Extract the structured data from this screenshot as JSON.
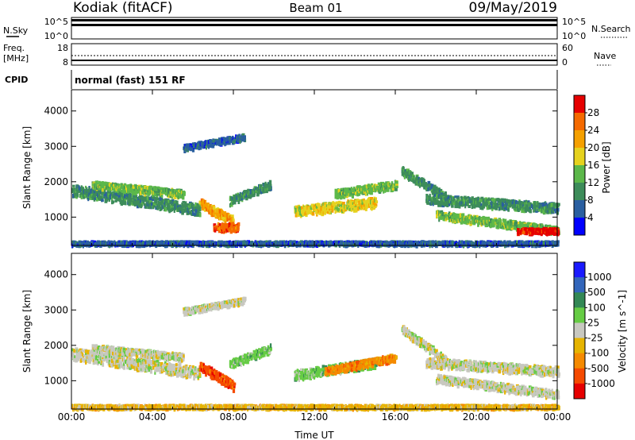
{
  "header": {
    "station": "Kodiak (fitACF)",
    "beam": "Beam 01",
    "date": "09/May/2019"
  },
  "status_panel": {
    "nsky_label": "N.Sky",
    "nsky_ticks": [
      "10^5",
      "10^0"
    ],
    "nsearch_label": "N.Search",
    "nsearch_ticks": [
      "10^5",
      "10^0"
    ],
    "freq_label_line1": "Freq.",
    "freq_label_line2": "[MHz]",
    "freq_ticks": [
      "18",
      "8"
    ],
    "nave_label": "Nave",
    "nave_ticks": [
      "60",
      "0"
    ],
    "cpid_label": "CPID",
    "cpid_value": "normal (fast) 151 RF"
  },
  "colors": {
    "power_scale": [
      "#0000ff",
      "#2a5fa0",
      "#3d8c5a",
      "#5cb84a",
      "#e6d21e",
      "#f5a000",
      "#f56a00",
      "#e60000"
    ],
    "velocity_scale": [
      "#1a1aff",
      "#3366bb",
      "#338855",
      "#66cc44",
      "#c8c8c0",
      "#e6b400",
      "#f58a00",
      "#f54a00",
      "#e60000"
    ]
  },
  "chart_data": [
    {
      "type": "heatmap",
      "name": "power",
      "xlabel": "",
      "ylabel": "Slant Range [km]",
      "x_ticks": [
        "00:00",
        "04:00",
        "08:00",
        "12:00",
        "16:00",
        "20:00",
        "00:00"
      ],
      "y_ticks": [
        "1000",
        "2000",
        "3000",
        "4000"
      ],
      "ylim": [
        200,
        4600
      ],
      "colorbar_label": "Power [dB]",
      "colorbar_ticks": [
        "4",
        "8",
        "12",
        "16",
        "20",
        "24",
        "28"
      ],
      "bands": [
        {
          "t0": 0.0,
          "t1": 6.3,
          "r0": 1800,
          "r1": 1250,
          "w": 320,
          "c": 2
        },
        {
          "t0": 1.0,
          "t1": 5.5,
          "r0": 1950,
          "r1": 1700,
          "w": 200,
          "c": 3
        },
        {
          "t0": 6.3,
          "t1": 8.0,
          "r0": 1450,
          "r1": 900,
          "w": 260,
          "c": 5
        },
        {
          "t0": 7.0,
          "t1": 8.2,
          "r0": 750,
          "r1": 750,
          "w": 220,
          "c": 6
        },
        {
          "t0": 7.8,
          "t1": 9.8,
          "r0": 1500,
          "r1": 1950,
          "w": 220,
          "c": 2
        },
        {
          "t0": 11.0,
          "t1": 15.0,
          "r0": 1200,
          "r1": 1450,
          "w": 280,
          "c": 4
        },
        {
          "t0": 13.0,
          "t1": 16.0,
          "r0": 1700,
          "r1": 1950,
          "w": 220,
          "c": 3
        },
        {
          "t0": 16.3,
          "t1": 18.5,
          "r0": 2350,
          "r1": 1600,
          "w": 220,
          "c": 2
        },
        {
          "t0": 17.5,
          "t1": 24.0,
          "r0": 1550,
          "r1": 1300,
          "w": 260,
          "c": 2
        },
        {
          "t0": 18.0,
          "t1": 24.0,
          "r0": 1100,
          "r1": 650,
          "w": 220,
          "c": 3
        },
        {
          "t0": 22.0,
          "t1": 24.0,
          "r0": 650,
          "r1": 650,
          "w": 140,
          "c": 7
        },
        {
          "t0": 5.5,
          "t1": 8.5,
          "r0": 3000,
          "r1": 3300,
          "w": 160,
          "c": 1
        },
        {
          "t0": 0.0,
          "t1": 24.0,
          "r0": 300,
          "r1": 300,
          "w": 100,
          "c": 1
        }
      ]
    },
    {
      "type": "heatmap",
      "name": "velocity",
      "xlabel": "Time UT",
      "ylabel": "Slant Range [km]",
      "x_ticks": [
        "00:00",
        "04:00",
        "08:00",
        "12:00",
        "16:00",
        "20:00",
        "00:00"
      ],
      "y_ticks": [
        "1000",
        "2000",
        "3000",
        "4000"
      ],
      "ylim": [
        200,
        4600
      ],
      "colorbar_label": "Velocity [m s^-1]",
      "colorbar_ticks": [
        "1000",
        "500",
        "100",
        "25",
        "-25",
        "-100",
        "-500",
        "-1000"
      ],
      "bands": [
        {
          "t0": 0.0,
          "t1": 6.3,
          "r0": 1800,
          "r1": 1250,
          "w": 320,
          "c": 4
        },
        {
          "t0": 1.0,
          "t1": 5.5,
          "r0": 1950,
          "r1": 1700,
          "w": 200,
          "c": 4
        },
        {
          "t0": 6.3,
          "t1": 8.0,
          "r0": 1450,
          "r1": 900,
          "w": 260,
          "c": 7
        },
        {
          "t0": 7.8,
          "t1": 9.8,
          "r0": 1500,
          "r1": 1950,
          "w": 220,
          "c": 3
        },
        {
          "t0": 11.0,
          "t1": 15.0,
          "r0": 1200,
          "r1": 1550,
          "w": 260,
          "c": 3
        },
        {
          "t0": 12.5,
          "t1": 16.0,
          "r0": 1300,
          "r1": 1700,
          "w": 200,
          "c": 6
        },
        {
          "t0": 16.3,
          "t1": 18.5,
          "r0": 2500,
          "r1": 1600,
          "w": 220,
          "c": 4
        },
        {
          "t0": 17.5,
          "t1": 24.0,
          "r0": 1550,
          "r1": 1300,
          "w": 260,
          "c": 4
        },
        {
          "t0": 18.0,
          "t1": 24.0,
          "r0": 1100,
          "r1": 650,
          "w": 220,
          "c": 4
        },
        {
          "t0": 5.5,
          "t1": 8.5,
          "r0": 3000,
          "r1": 3300,
          "w": 160,
          "c": 4
        },
        {
          "t0": 0.0,
          "t1": 24.0,
          "r0": 300,
          "r1": 300,
          "w": 100,
          "c": 5
        }
      ]
    }
  ]
}
